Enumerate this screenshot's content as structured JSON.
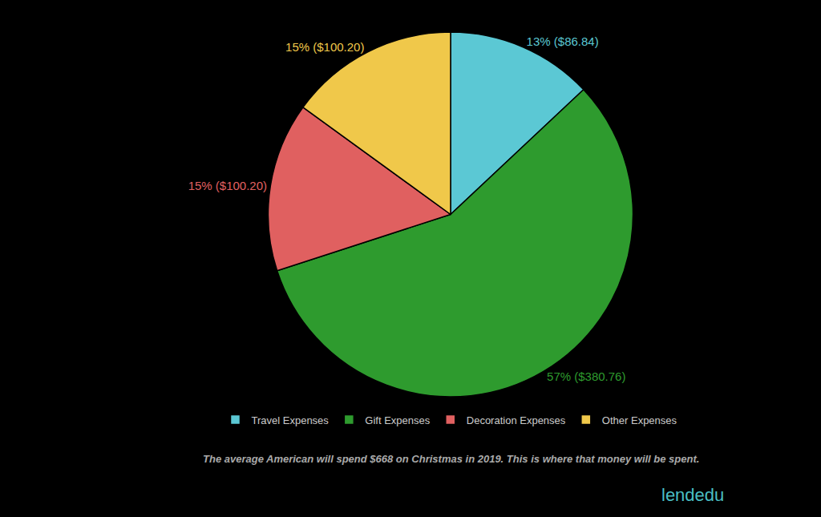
{
  "chart_data": {
    "type": "pie",
    "subtitle": "The average American will spend $668 on Christmas in 2019. This is where that money will be spent.",
    "categories": [
      "Travel Expenses",
      "Gift Expenses",
      "Decoration Expenses",
      "Other Expenses"
    ],
    "values": [
      13,
      57,
      15,
      15
    ],
    "value_labels": [
      "13% ($86.84)",
      "57% ($380.76)",
      "15% ($100.20)",
      "15% ($100.20)"
    ],
    "colors": [
      "#5BC8D4",
      "#2E9B2E",
      "#E06060",
      "#F0C84A"
    ],
    "data_labels": true,
    "legend": "bottom",
    "annotations": [
      "lendedu"
    ]
  }
}
